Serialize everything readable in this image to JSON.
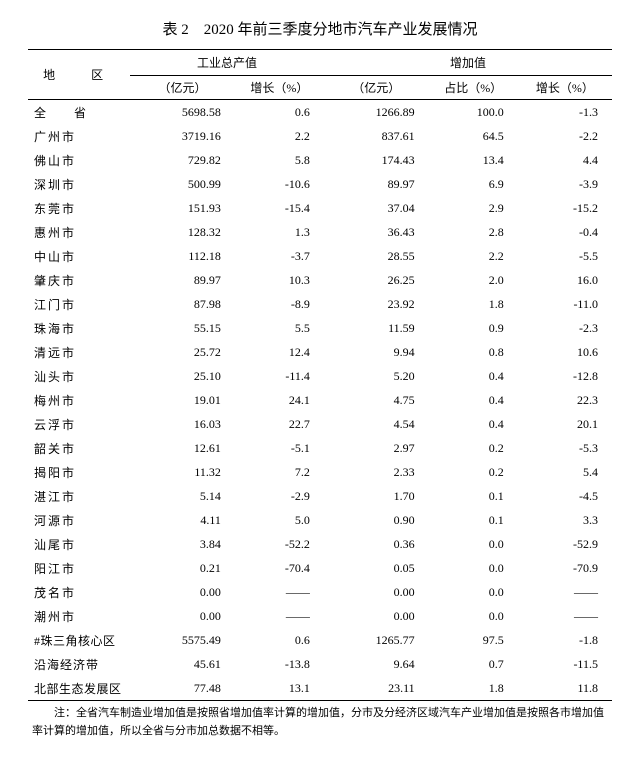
{
  "title": "表 2　2020 年前三季度分地市汽车产业发展情况",
  "headers": {
    "region": "地　区",
    "industrial_total": "工业总产值",
    "added_value": "增加值",
    "unit_yiyuan": "（亿元）",
    "growth_pct": "增长（%）",
    "share_pct": "占比（%）"
  },
  "rows": [
    {
      "region": "全　省",
      "full": true,
      "total": "5698.58",
      "g1": "0.6",
      "add": "1266.89",
      "pct": "100.0",
      "g2": "-1.3"
    },
    {
      "region": "广州市",
      "total": "3719.16",
      "g1": "2.2",
      "add": "837.61",
      "pct": "64.5",
      "g2": "-2.2"
    },
    {
      "region": "佛山市",
      "total": "729.82",
      "g1": "5.8",
      "add": "174.43",
      "pct": "13.4",
      "g2": "4.4"
    },
    {
      "region": "深圳市",
      "total": "500.99",
      "g1": "-10.6",
      "add": "89.97",
      "pct": "6.9",
      "g2": "-3.9"
    },
    {
      "region": "东莞市",
      "total": "151.93",
      "g1": "-15.4",
      "add": "37.04",
      "pct": "2.9",
      "g2": "-15.2"
    },
    {
      "region": "惠州市",
      "total": "128.32",
      "g1": "1.3",
      "add": "36.43",
      "pct": "2.8",
      "g2": "-0.4"
    },
    {
      "region": "中山市",
      "total": "112.18",
      "g1": "-3.7",
      "add": "28.55",
      "pct": "2.2",
      "g2": "-5.5"
    },
    {
      "region": "肇庆市",
      "total": "89.97",
      "g1": "10.3",
      "add": "26.25",
      "pct": "2.0",
      "g2": "16.0"
    },
    {
      "region": "江门市",
      "total": "87.98",
      "g1": "-8.9",
      "add": "23.92",
      "pct": "1.8",
      "g2": "-11.0"
    },
    {
      "region": "珠海市",
      "total": "55.15",
      "g1": "5.5",
      "add": "11.59",
      "pct": "0.9",
      "g2": "-2.3"
    },
    {
      "region": "清远市",
      "total": "25.72",
      "g1": "12.4",
      "add": "9.94",
      "pct": "0.8",
      "g2": "10.6"
    },
    {
      "region": "汕头市",
      "total": "25.10",
      "g1": "-11.4",
      "add": "5.20",
      "pct": "0.4",
      "g2": "-12.8"
    },
    {
      "region": "梅州市",
      "total": "19.01",
      "g1": "24.1",
      "add": "4.75",
      "pct": "0.4",
      "g2": "22.3"
    },
    {
      "region": "云浮市",
      "total": "16.03",
      "g1": "22.7",
      "add": "4.54",
      "pct": "0.4",
      "g2": "20.1"
    },
    {
      "region": "韶关市",
      "total": "12.61",
      "g1": "-5.1",
      "add": "2.97",
      "pct": "0.2",
      "g2": "-5.3"
    },
    {
      "region": "揭阳市",
      "total": "11.32",
      "g1": "7.2",
      "add": "2.33",
      "pct": "0.2",
      "g2": "5.4"
    },
    {
      "region": "湛江市",
      "total": "5.14",
      "g1": "-2.9",
      "add": "1.70",
      "pct": "0.1",
      "g2": "-4.5"
    },
    {
      "region": "河源市",
      "total": "4.11",
      "g1": "5.0",
      "add": "0.90",
      "pct": "0.1",
      "g2": "3.3"
    },
    {
      "region": "汕尾市",
      "total": "3.84",
      "g1": "-52.2",
      "add": "0.36",
      "pct": "0.0",
      "g2": "-52.9"
    },
    {
      "region": "阳江市",
      "total": "0.21",
      "g1": "-70.4",
      "add": "0.05",
      "pct": "0.0",
      "g2": "-70.9"
    },
    {
      "region": "茂名市",
      "total": "0.00",
      "g1": "——",
      "add": "0.00",
      "pct": "0.0",
      "g2": "——"
    },
    {
      "region": "潮州市",
      "total": "0.00",
      "g1": "——",
      "add": "0.00",
      "pct": "0.0",
      "g2": "——"
    },
    {
      "region": "#珠三角核心区",
      "ls": "0.5px",
      "total": "5575.49",
      "g1": "0.6",
      "add": "1265.77",
      "pct": "97.5",
      "g2": "-1.8"
    },
    {
      "region": "沿海经济带",
      "ls": "1px",
      "total": "45.61",
      "g1": "-13.8",
      "add": "9.64",
      "pct": "0.7",
      "g2": "-11.5"
    },
    {
      "region": "北部生态发展区",
      "ls": "0.5px",
      "total": "77.48",
      "g1": "13.1",
      "add": "23.11",
      "pct": "1.8",
      "g2": "11.8"
    }
  ],
  "footnote": "注：全省汽车制造业增加值是按照省增加值率计算的增加值，分市及分经济区域汽车产业增加值是按照各市增加值率计算的增加值，所以全省与分市加总数据不相等。",
  "style": {
    "background": "#ffffff",
    "text_color": "#000000",
    "border_color": "#000000",
    "title_fontsize": 15,
    "body_fontsize": 12,
    "footnote_fontsize": 11
  }
}
